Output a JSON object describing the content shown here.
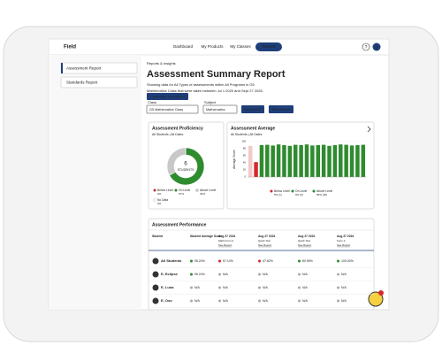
{
  "nav": {
    "logo": "Field",
    "items": [
      "Dashboard",
      "My Products",
      "My Classes",
      "Reports"
    ],
    "help": "?",
    "avatar": "LE"
  },
  "sidebar": {
    "items": [
      "Assessment Report",
      "Standards Report"
    ]
  },
  "header": {
    "breadcrumb": "Reports & Insights",
    "title": "Assessment Summary Report",
    "description": [
      "Showing data for All Types of assessments within All Programs in G5",
      "Mathematics Class that were taken between Jul 1 2020 and Sept 27 2026."
    ],
    "customize": "Customize This Report"
  },
  "filters": {
    "class_label": "Class",
    "class_value": "G5 Mathematics Class",
    "subject_label": "Subject",
    "subject_value": "Mathematics",
    "export": "Export CSV",
    "print": "Print Report"
  },
  "chart_data": [
    {
      "type": "pie",
      "title": "Assessment Proficiency",
      "subtitle": "All Students | All Dates",
      "center_value": "6",
      "center_label": "STUDENTS",
      "categories": [
        "Below Level",
        "On Level",
        "Above Level",
        "No Data"
      ],
      "values": [
        0,
        67,
        33,
        0
      ],
      "value_labels": [
        "0%",
        "67%",
        "33%",
        "0%"
      ],
      "colors": [
        "#d62828",
        "#2e8b2e",
        "#c8c8c8",
        "#ffffff"
      ]
    },
    {
      "type": "bar",
      "title": "Assessment Average",
      "subtitle": "All Students | All Dates",
      "y_label": "Average Score",
      "categories": [
        null,
        null,
        null,
        null,
        null,
        null,
        null,
        null,
        null,
        null,
        null,
        null,
        null,
        null,
        null,
        null,
        null,
        null,
        null,
        null,
        null
      ],
      "values": [
        88,
        42,
        90,
        91,
        89,
        92,
        90,
        88,
        91,
        90,
        92,
        89,
        90,
        91,
        88,
        90,
        92,
        91,
        89,
        90,
        91
      ],
      "colors": [
        "#f2c9c9",
        "#d62828",
        "#2e8b2e",
        "#2e8b2e",
        "#2e8b2e",
        "#2e8b2e",
        "#2e8b2e",
        "#2e8b2e",
        "#2e8b2e",
        "#2e8b2e",
        "#2e8b2e",
        "#2e8b2e",
        "#2e8b2e",
        "#2e8b2e",
        "#2e8b2e",
        "#2e8b2e",
        "#2e8b2e",
        "#2e8b2e",
        "#2e8b2e",
        "#2e8b2e",
        "#2e8b2e"
      ],
      "ylim": [
        0,
        100
      ],
      "yticks": [
        0,
        20,
        40,
        60,
        80,
        100
      ],
      "legend": [
        {
          "name": "Below Level",
          "note": "5% (1)",
          "color": "#d62828"
        },
        {
          "name": "On Level",
          "note": "0% (0)",
          "color": "#2e8b2e"
        },
        {
          "name": "Above Level",
          "note": "95% (20)",
          "color": "#2e8b2e"
        }
      ]
    }
  ],
  "table": {
    "title": "Assessment Performance",
    "columns": [
      {
        "title": "Student"
      },
      {
        "title": "Student Average Score"
      },
      {
        "title": "Aug 27 2024",
        "sub": "Math Form A",
        "link": "See Report"
      },
      {
        "title": "Aug 27 2024",
        "sub": "Quick Test",
        "link": "See Report"
      },
      {
        "title": "Aug 27 2024",
        "sub": "Quick Test",
        "link": "See Report"
      },
      {
        "title": "Aug 27 2024",
        "sub": "Form A",
        "link": "See Report"
      }
    ],
    "rows": [
      {
        "student": "All Students",
        "cells": [
          "95.24%",
          "57.14%",
          "47.62%",
          "80.95%",
          "100.00%"
        ],
        "colors": [
          "#2e8b2e",
          "#d62828",
          "#d62828",
          "#2e8b2e",
          "#2e8b2e"
        ]
      },
      {
        "student": "E, Eclipse",
        "cells": [
          "95.24%",
          "N/A",
          "N/A",
          "N/A",
          "N/A"
        ],
        "colors": [
          "#2e8b2e",
          "#aaaaaa",
          "#aaaaaa",
          "#aaaaaa",
          "#aaaaaa"
        ]
      },
      {
        "student": "E, Luna",
        "cells": [
          "N/A",
          "N/A",
          "N/A",
          "N/A",
          "N/A"
        ],
        "colors": [
          "#aaaaaa",
          "#aaaaaa",
          "#aaaaaa",
          "#aaaaaa",
          "#aaaaaa"
        ]
      },
      {
        "student": "E, Oso",
        "cells": [
          "N/A",
          "N/A",
          "N/A",
          "N/A",
          "N/A"
        ],
        "colors": [
          "#aaaaaa",
          "#aaaaaa",
          "#aaaaaa",
          "#aaaaaa",
          "#aaaaaa"
        ]
      }
    ]
  }
}
